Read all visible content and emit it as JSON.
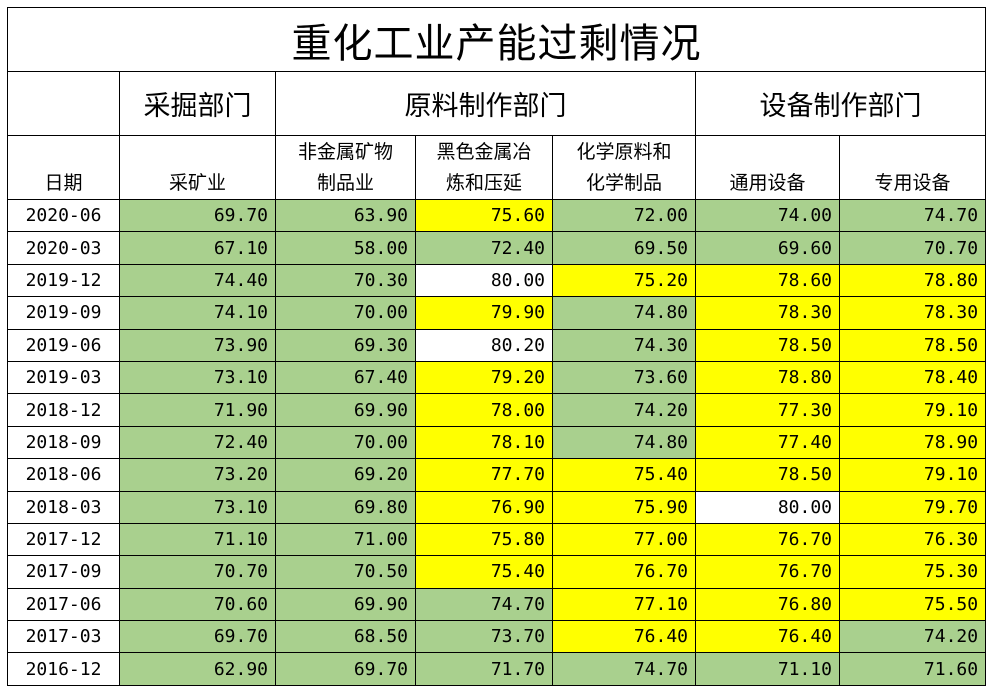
{
  "title": "重化工业产能过剩情况",
  "departments": [
    "采掘部门",
    "原料制作部门",
    "设备制作部门"
  ],
  "date_header": "日期",
  "columns": [
    [
      "采矿业"
    ],
    [
      "非金属矿物",
      "制品业"
    ],
    [
      "黑色金属冶",
      "炼和压延"
    ],
    [
      "化学原料和",
      "化学制品"
    ],
    [
      "通用设备"
    ],
    [
      "专用设备"
    ]
  ],
  "colors": {
    "green": "#a9d08e",
    "yellow": "#ffff00",
    "white": "#ffffff"
  },
  "rows": [
    {
      "date": "2020-06",
      "values": [
        "69.70",
        "63.90",
        "75.60",
        "72.00",
        "74.00",
        "74.70"
      ],
      "colors": [
        "green",
        "green",
        "yellow",
        "green",
        "green",
        "green"
      ]
    },
    {
      "date": "2020-03",
      "values": [
        "67.10",
        "58.00",
        "72.40",
        "69.50",
        "69.60",
        "70.70"
      ],
      "colors": [
        "green",
        "green",
        "green",
        "green",
        "green",
        "green"
      ]
    },
    {
      "date": "2019-12",
      "values": [
        "74.40",
        "70.30",
        "80.00",
        "75.20",
        "78.60",
        "78.80"
      ],
      "colors": [
        "green",
        "green",
        "white",
        "yellow",
        "yellow",
        "yellow"
      ]
    },
    {
      "date": "2019-09",
      "values": [
        "74.10",
        "70.00",
        "79.90",
        "74.80",
        "78.30",
        "78.30"
      ],
      "colors": [
        "green",
        "green",
        "yellow",
        "green",
        "yellow",
        "yellow"
      ]
    },
    {
      "date": "2019-06",
      "values": [
        "73.90",
        "69.30",
        "80.20",
        "74.30",
        "78.50",
        "78.50"
      ],
      "colors": [
        "green",
        "green",
        "white",
        "green",
        "yellow",
        "yellow"
      ]
    },
    {
      "date": "2019-03",
      "values": [
        "73.10",
        "67.40",
        "79.20",
        "73.60",
        "78.80",
        "78.40"
      ],
      "colors": [
        "green",
        "green",
        "yellow",
        "green",
        "yellow",
        "yellow"
      ]
    },
    {
      "date": "2018-12",
      "values": [
        "71.90",
        "69.90",
        "78.00",
        "74.20",
        "77.30",
        "79.10"
      ],
      "colors": [
        "green",
        "green",
        "yellow",
        "green",
        "yellow",
        "yellow"
      ]
    },
    {
      "date": "2018-09",
      "values": [
        "72.40",
        "70.00",
        "78.10",
        "74.80",
        "77.40",
        "78.90"
      ],
      "colors": [
        "green",
        "green",
        "yellow",
        "green",
        "yellow",
        "yellow"
      ]
    },
    {
      "date": "2018-06",
      "values": [
        "73.20",
        "69.20",
        "77.70",
        "75.40",
        "78.50",
        "79.10"
      ],
      "colors": [
        "green",
        "green",
        "yellow",
        "yellow",
        "yellow",
        "yellow"
      ]
    },
    {
      "date": "2018-03",
      "values": [
        "73.10",
        "69.80",
        "76.90",
        "75.90",
        "80.00",
        "79.70"
      ],
      "colors": [
        "green",
        "green",
        "yellow",
        "yellow",
        "white",
        "yellow"
      ]
    },
    {
      "date": "2017-12",
      "values": [
        "71.10",
        "71.00",
        "75.80",
        "77.00",
        "76.70",
        "76.30"
      ],
      "colors": [
        "green",
        "green",
        "yellow",
        "yellow",
        "yellow",
        "yellow"
      ]
    },
    {
      "date": "2017-09",
      "values": [
        "70.70",
        "70.50",
        "75.40",
        "76.70",
        "76.70",
        "75.30"
      ],
      "colors": [
        "green",
        "green",
        "yellow",
        "yellow",
        "yellow",
        "yellow"
      ]
    },
    {
      "date": "2017-06",
      "values": [
        "70.60",
        "69.90",
        "74.70",
        "77.10",
        "76.80",
        "75.50"
      ],
      "colors": [
        "green",
        "green",
        "green",
        "yellow",
        "yellow",
        "yellow"
      ]
    },
    {
      "date": "2017-03",
      "values": [
        "69.70",
        "68.50",
        "73.70",
        "76.40",
        "76.40",
        "74.20"
      ],
      "colors": [
        "green",
        "green",
        "green",
        "yellow",
        "yellow",
        "green"
      ]
    },
    {
      "date": "2016-12",
      "values": [
        "62.90",
        "69.70",
        "71.70",
        "74.70",
        "71.10",
        "71.60"
      ],
      "colors": [
        "green",
        "green",
        "green",
        "green",
        "green",
        "green"
      ]
    }
  ]
}
